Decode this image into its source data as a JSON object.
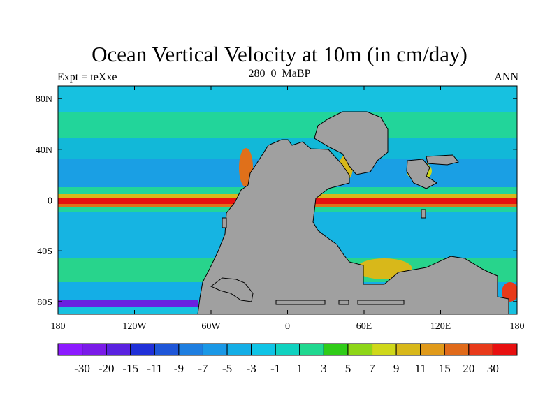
{
  "title": "Ocean Vertical Velocity at 10m (in cm/day)",
  "subtitle_left": "Expt = teXxe",
  "subtitle_center": "280_0_MaBP",
  "subtitle_right": "ANN",
  "map": {
    "lon_range": [
      -180,
      180
    ],
    "lat_range": [
      -90,
      90
    ],
    "lat_ticks": [
      {
        "value": 80,
        "label": "80N"
      },
      {
        "value": 40,
        "label": "40N"
      },
      {
        "value": 0,
        "label": "0"
      },
      {
        "value": -40,
        "label": "40S"
      },
      {
        "value": -80,
        "label": "80S"
      }
    ],
    "lon_ticks": [
      {
        "value": -180,
        "label": "180"
      },
      {
        "value": -120,
        "label": "120W"
      },
      {
        "value": -60,
        "label": "60W"
      },
      {
        "value": 0,
        "label": "0"
      },
      {
        "value": 60,
        "label": "60E"
      },
      {
        "value": 120,
        "label": "120E"
      },
      {
        "value": 180,
        "label": "180"
      }
    ],
    "land_color": "#a0a0a0",
    "ocean_base_color": "#17c1e0"
  },
  "colorbar": {
    "labels": [
      "-30",
      "-20",
      "-15",
      "-11",
      "-9",
      "-7",
      "-5",
      "-3",
      "-1",
      "1",
      "3",
      "5",
      "7",
      "9",
      "11",
      "15",
      "20",
      "30"
    ],
    "colors": [
      "#8c1aff",
      "#7a1be8",
      "#5a22e0",
      "#2030d8",
      "#1e56d8",
      "#1e7ee0",
      "#1a98e6",
      "#14aee6",
      "#0fc4e6",
      "#10d2c0",
      "#20d890",
      "#30cc18",
      "#8ed618",
      "#cfd81a",
      "#d8b81a",
      "#e09a1a",
      "#e06a1a",
      "#e83a1a",
      "#e81010"
    ]
  }
}
